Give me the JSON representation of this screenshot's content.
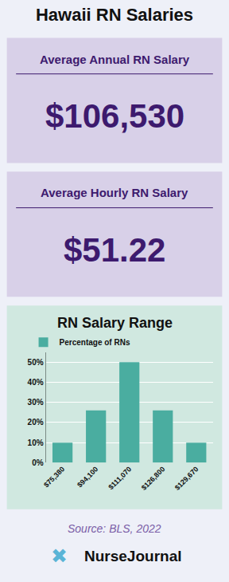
{
  "chart_data": {
    "type": "bar",
    "title": "Hawaii RN Salaries",
    "subtitle": "RN Salary Range",
    "categories": [
      "$75,380",
      "$94,100",
      "$111,070",
      "$126,800",
      "$129,670"
    ],
    "series": [
      {
        "name": "Percentage of RNs",
        "color": "#4aada0",
        "values": [
          10,
          26,
          50,
          26,
          10
        ]
      }
    ],
    "ylim": [
      0,
      55
    ],
    "yticks": [
      {
        "value": 0,
        "label": "0%"
      },
      {
        "value": 10,
        "label": "10%"
      },
      {
        "value": 20,
        "label": "20%"
      },
      {
        "value": 30,
        "label": "30%"
      },
      {
        "value": 40,
        "label": "40%"
      },
      {
        "value": 50,
        "label": "50%"
      }
    ],
    "grid": true,
    "legend": "upper left",
    "annotations": [
      "Average Annual RN Salary",
      "$106,530",
      "Average Hourly RN Salary",
      "$51.22",
      "Source: BLS, 2022",
      "✖",
      "NurseJournal"
    ]
  }
}
